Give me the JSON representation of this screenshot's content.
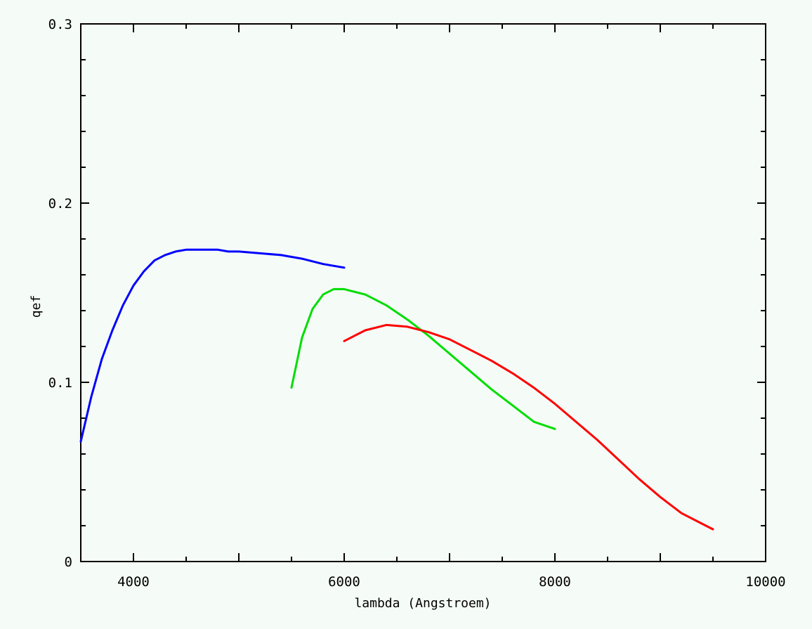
{
  "chart_data": {
    "type": "line",
    "title": "",
    "xlabel": "lambda (Angstroem)",
    "ylabel": "qef",
    "xlim": [
      3500,
      10000
    ],
    "ylim": [
      0,
      0.3
    ],
    "x_ticks": [
      4000,
      6000,
      8000,
      10000
    ],
    "x_tick_labels": [
      "4000",
      "6000",
      "8000",
      "10000"
    ],
    "y_ticks": [
      0,
      0.1,
      0.2,
      0.3
    ],
    "y_tick_labels": [
      "0",
      "0.1",
      "0.2",
      "0.3"
    ],
    "grid": false,
    "legend": "none",
    "background": "#f5fbf7",
    "series": [
      {
        "color": "#0000ff",
        "x": [
          3500,
          3600,
          3700,
          3800,
          3900,
          4000,
          4100,
          4200,
          4300,
          4400,
          4500,
          4600,
          4700,
          4800,
          4900,
          5000,
          5200,
          5400,
          5600,
          5800,
          6000
        ],
        "y": [
          0.067,
          0.092,
          0.113,
          0.129,
          0.143,
          0.154,
          0.162,
          0.168,
          0.171,
          0.173,
          0.174,
          0.174,
          0.174,
          0.174,
          0.173,
          0.173,
          0.172,
          0.171,
          0.169,
          0.166,
          0.164
        ]
      },
      {
        "color": "#00dd00",
        "x": [
          5500,
          5600,
          5700,
          5800,
          5900,
          6000,
          6200,
          6400,
          6600,
          6800,
          7000,
          7200,
          7400,
          7600,
          7800,
          8000
        ],
        "y": [
          0.097,
          0.125,
          0.141,
          0.149,
          0.152,
          0.152,
          0.149,
          0.143,
          0.135,
          0.126,
          0.116,
          0.106,
          0.096,
          0.087,
          0.078,
          0.074
        ]
      },
      {
        "color": "#ff0000",
        "x": [
          6000,
          6200,
          6400,
          6600,
          6800,
          7000,
          7200,
          7400,
          7600,
          7800,
          8000,
          8200,
          8400,
          8600,
          8800,
          9000,
          9200,
          9400,
          9500
        ],
        "y": [
          0.123,
          0.129,
          0.132,
          0.131,
          0.128,
          0.124,
          0.118,
          0.112,
          0.105,
          0.097,
          0.088,
          0.078,
          0.068,
          0.057,
          0.046,
          0.036,
          0.027,
          0.021,
          0.018
        ]
      }
    ]
  }
}
